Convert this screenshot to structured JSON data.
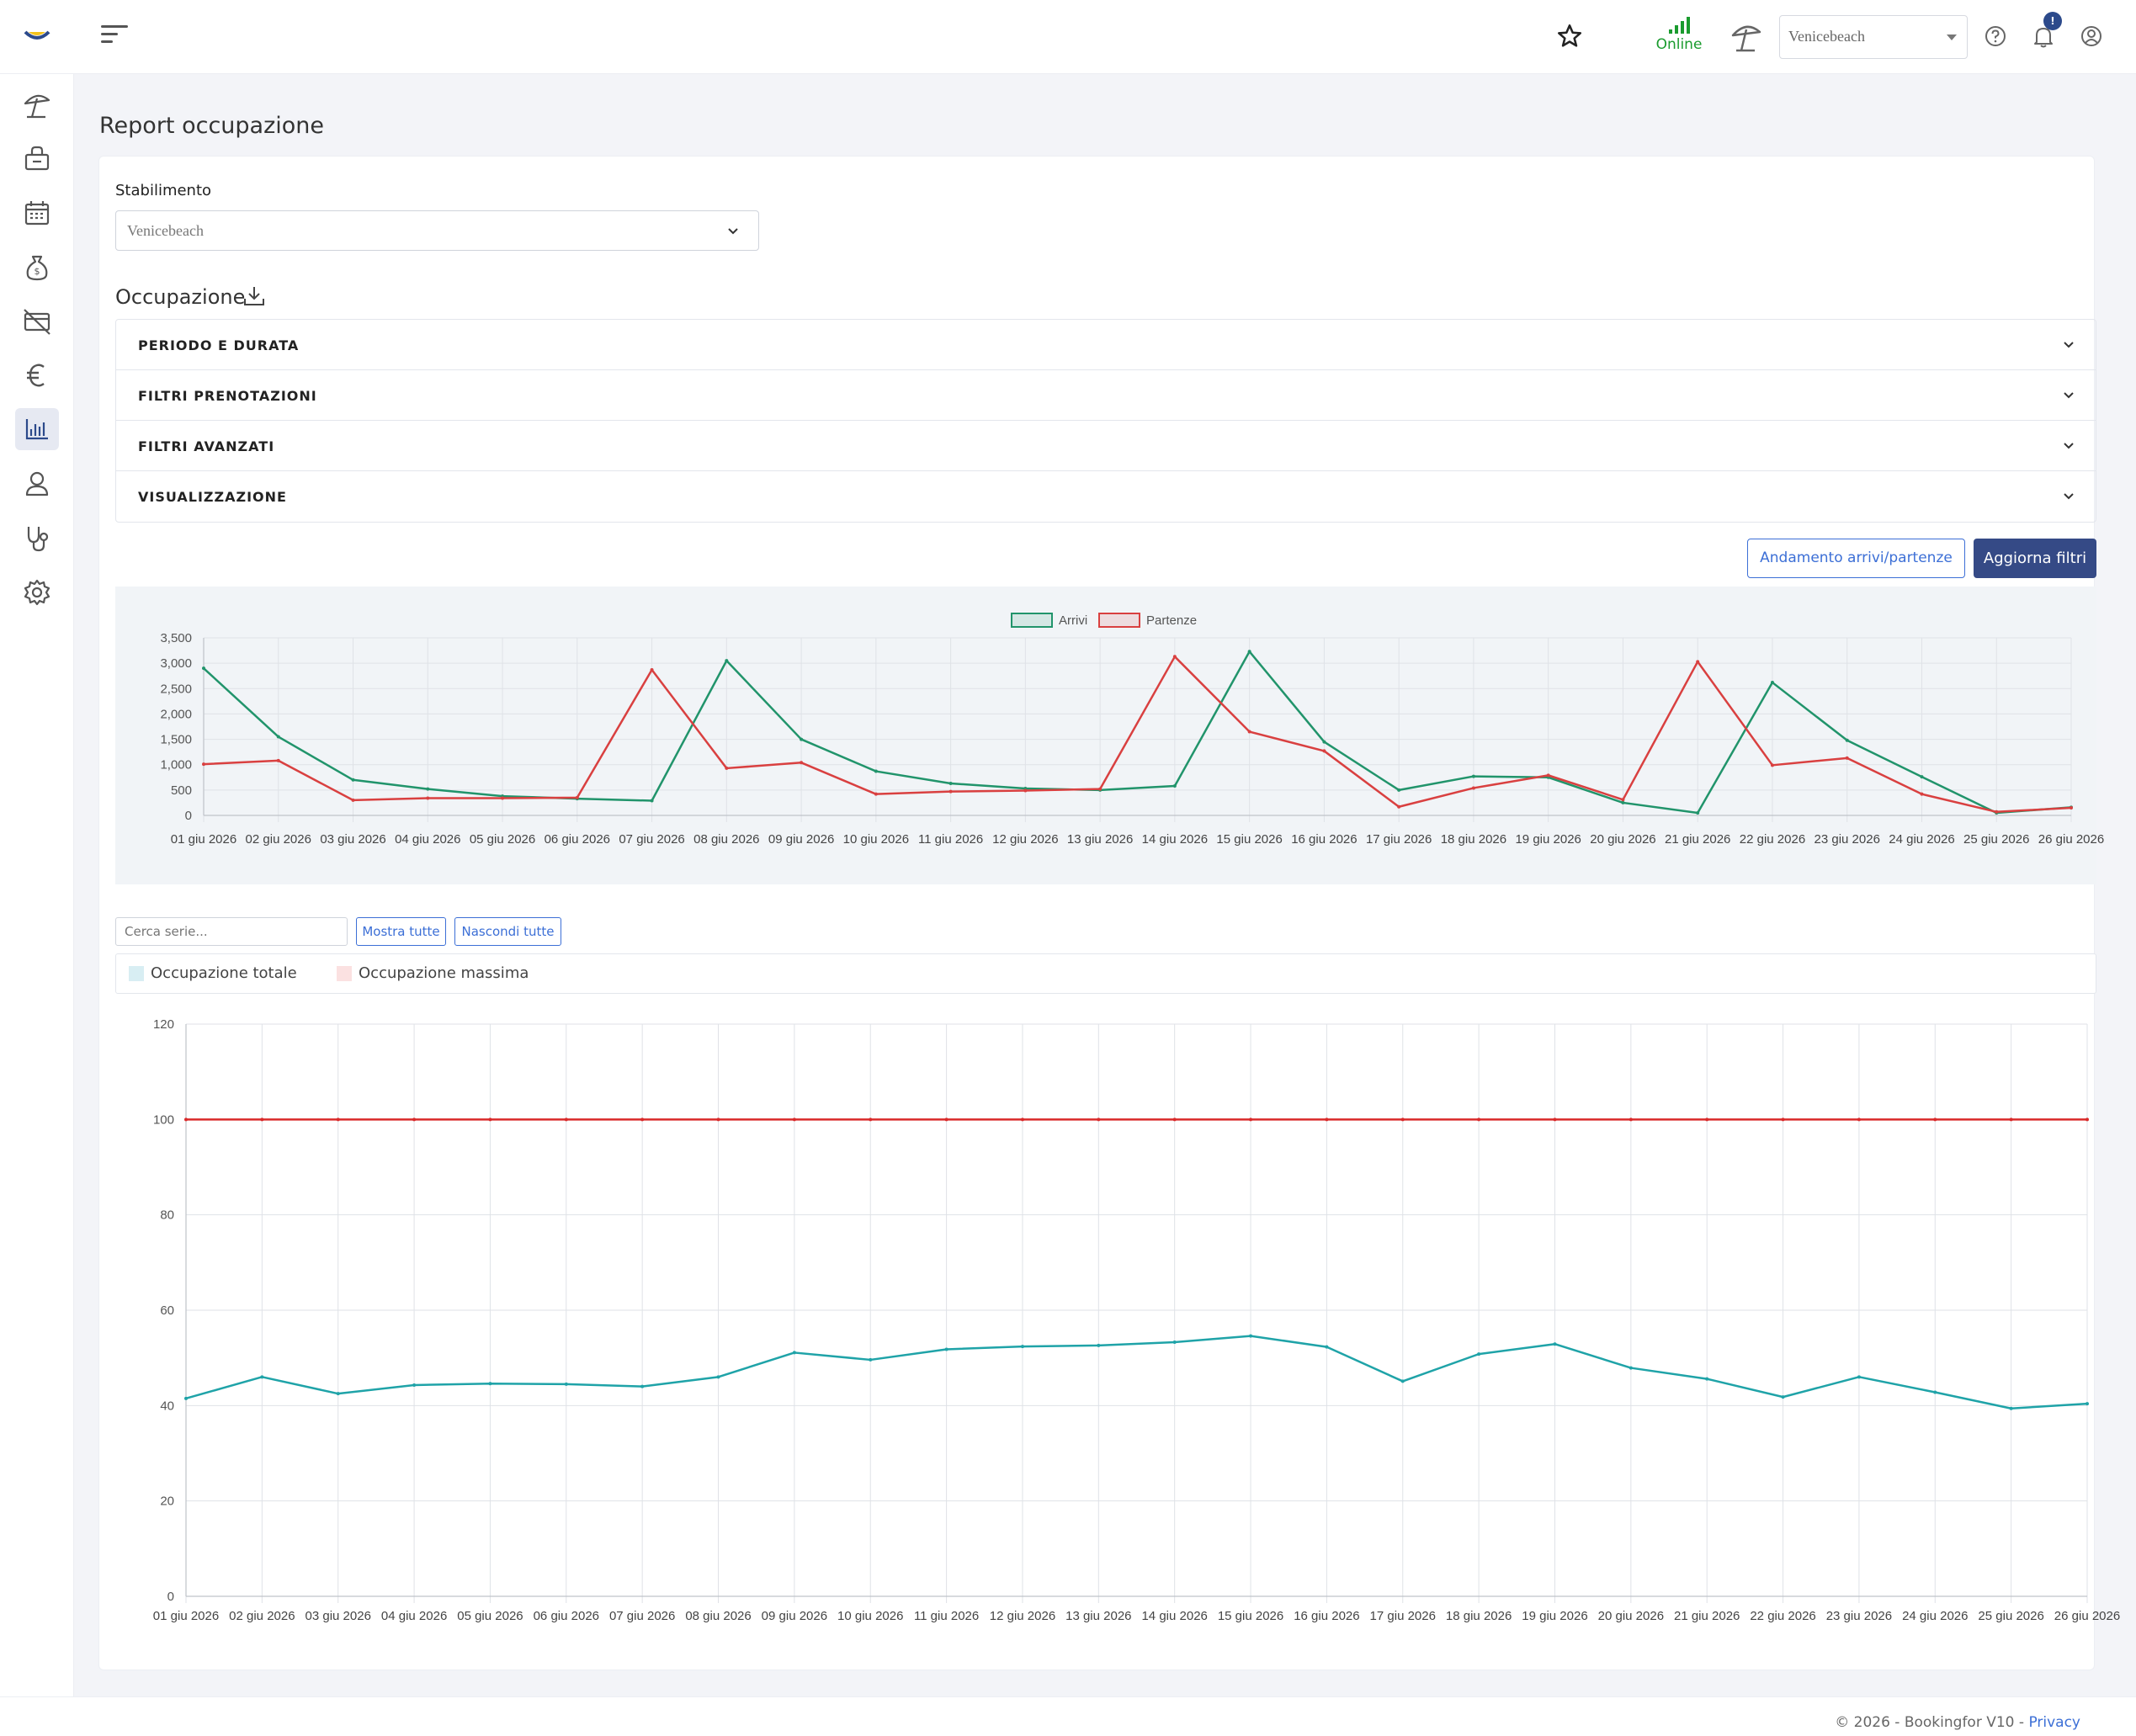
{
  "header": {
    "online_label": "Online",
    "site_select_value": "Venicebeach",
    "notification_count": "!",
    "icons": [
      "menu-icon",
      "star-icon",
      "signal-icon",
      "umbrella-icon",
      "help-icon",
      "bell-icon",
      "user-circle-icon"
    ]
  },
  "sidebar": {
    "items": [
      {
        "name": "umbrella",
        "active": false
      },
      {
        "name": "bag",
        "active": false
      },
      {
        "name": "calendar",
        "active": false
      },
      {
        "name": "money-bag",
        "active": false
      },
      {
        "name": "card-off",
        "active": false
      },
      {
        "name": "euro",
        "active": false
      },
      {
        "name": "chart",
        "active": true
      },
      {
        "name": "user",
        "active": false
      },
      {
        "name": "stethoscope",
        "active": false
      },
      {
        "name": "gear",
        "active": false
      }
    ]
  },
  "page": {
    "title": "Report occupazione",
    "stabilimento_label": "Stabilimento",
    "stabilimento_value": "Venicebeach",
    "section_title": "Occupazione",
    "accordion": [
      "PERIODO E DURATA",
      "FILTRI PRENOTAZIONI",
      "FILTRI AVANZATI",
      "VISUALIZZAZIONE"
    ],
    "btn_andamento": "Andamento arrivi/partenze",
    "btn_aggiorna": "Aggiorna filtri",
    "search_placeholder": "Cerca serie...",
    "btn_show_all": "Mostra tutte",
    "btn_hide_all": "Nascondi tutte",
    "legend": [
      {
        "label": "Occupazione totale",
        "color": "#d8eef3"
      },
      {
        "label": "Occupazione massima",
        "color": "#fbe1e1"
      }
    ]
  },
  "footer": {
    "text": "© 2026 - Bookingfor V10 - ",
    "privacy": "Privacy"
  },
  "chart_data": [
    {
      "type": "line",
      "categories": [
        "01 giu 2026",
        "02 giu 2026",
        "03 giu 2026",
        "04 giu 2026",
        "05 giu 2026",
        "06 giu 2026",
        "07 giu 2026",
        "08 giu 2026",
        "09 giu 2026",
        "10 giu 2026",
        "11 giu 2026",
        "12 giu 2026",
        "13 giu 2026",
        "14 giu 2026",
        "15 giu 2026",
        "16 giu 2026",
        "17 giu 2026",
        "18 giu 2026",
        "19 giu 2026",
        "20 giu 2026",
        "21 giu 2026",
        "22 giu 2026",
        "23 giu 2026",
        "24 giu 2026",
        "25 giu 2026",
        "26 giu 2026"
      ],
      "series": [
        {
          "name": "Arrivi",
          "color": "#21946b",
          "values": [
            2900,
            1550,
            700,
            520,
            380,
            330,
            290,
            3050,
            1500,
            870,
            630,
            530,
            500,
            580,
            3230,
            1450,
            500,
            770,
            750,
            250,
            50,
            2620,
            1480,
            760,
            50,
            160
          ]
        },
        {
          "name": "Partenze",
          "color": "#d94040",
          "values": [
            1010,
            1080,
            300,
            340,
            340,
            350,
            2870,
            930,
            1040,
            420,
            470,
            490,
            520,
            3130,
            1650,
            1270,
            170,
            540,
            790,
            310,
            3030,
            990,
            1130,
            420,
            70,
            150
          ]
        }
      ],
      "ylim": [
        0,
        3500
      ],
      "yticks": [
        "0",
        "500",
        "1,000",
        "1,500",
        "2,000",
        "2,500",
        "3,000",
        "3,500"
      ],
      "grid": true,
      "legend_position": "top"
    },
    {
      "type": "line",
      "categories": [
        "01 giu 2026",
        "02 giu 2026",
        "03 giu 2026",
        "04 giu 2026",
        "05 giu 2026",
        "06 giu 2026",
        "07 giu 2026",
        "08 giu 2026",
        "09 giu 2026",
        "10 giu 2026",
        "11 giu 2026",
        "12 giu 2026",
        "13 giu 2026",
        "14 giu 2026",
        "15 giu 2026",
        "16 giu 2026",
        "17 giu 2026",
        "18 giu 2026",
        "19 giu 2026",
        "20 giu 2026",
        "21 giu 2026",
        "22 giu 2026",
        "23 giu 2026",
        "24 giu 2026",
        "25 giu 2026",
        "26 giu 2026"
      ],
      "series": [
        {
          "name": "Occupazione totale",
          "color": "#1fa3a8",
          "values": [
            41.5,
            46,
            42.5,
            44.3,
            44.6,
            44.5,
            44,
            46,
            51.1,
            49.6,
            51.8,
            52.4,
            52.6,
            53.3,
            54.6,
            52.3,
            45.1,
            50.8,
            52.9,
            47.9,
            45.6,
            41.8,
            46,
            42.8,
            39.4,
            40.4
          ]
        },
        {
          "name": "Occupazione massima",
          "color": "#d92a2a",
          "values": [
            100,
            100,
            100,
            100,
            100,
            100,
            100,
            100,
            100,
            100,
            100,
            100,
            100,
            100,
            100,
            100,
            100,
            100,
            100,
            100,
            100,
            100,
            100,
            100,
            100,
            100
          ]
        }
      ],
      "ylim": [
        0,
        120
      ],
      "yticks": [
        "0",
        "20",
        "40",
        "60",
        "80",
        "100",
        "120"
      ],
      "grid": true,
      "legend_position": "top"
    }
  ]
}
